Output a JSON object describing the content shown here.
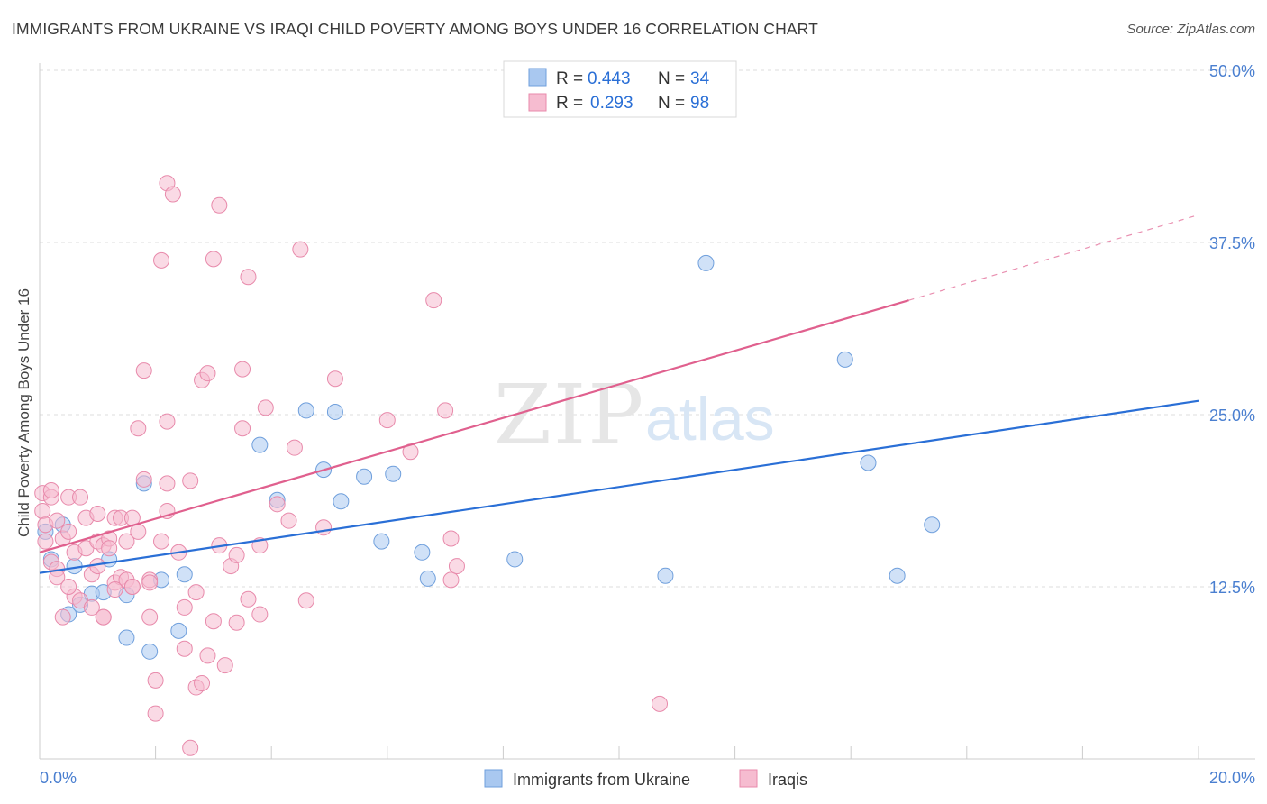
{
  "title": "IMMIGRANTS FROM UKRAINE VS IRAQI CHILD POVERTY AMONG BOYS UNDER 16 CORRELATION CHART",
  "source": "Source: ZipAtlas.com",
  "watermark": {
    "zip": "ZIP",
    "atlas": "atlas"
  },
  "colors": {
    "ukraine_fill": "#a9c8f0",
    "ukraine_stroke": "#6f9fdc",
    "ukraine_line": "#2a6fd6",
    "iraqi_fill": "#f6bcd0",
    "iraqi_stroke": "#e88aab",
    "iraqi_line": "#e0608e",
    "tick_label": "#4a7fd0",
    "grid": "#dddddd"
  },
  "legend": {
    "rows": [
      {
        "r_label": "R =",
        "r_value": "0.443",
        "n_label": "N =",
        "n_value": "34"
      },
      {
        "r_label": "R =",
        "r_value": "0.293",
        "n_label": "N =",
        "n_value": "98"
      }
    ]
  },
  "bottom_legend": [
    "Immigrants from Ukraine",
    "Iraqis"
  ],
  "chart_data": {
    "type": "scatter",
    "title": "IMMIGRANTS FROM UKRAINE VS IRAQI CHILD POVERTY AMONG BOYS UNDER 16 CORRELATION CHART",
    "xlabel": "",
    "ylabel": "Child Poverty Among Boys Under 16",
    "xlim": [
      0,
      20
    ],
    "ylim": [
      0,
      50
    ],
    "x_tick_labels": [
      "0.0%",
      "20.0%"
    ],
    "y_ticks": [
      12.5,
      25,
      37.5,
      50
    ],
    "y_tick_labels": [
      "12.5%",
      "25.0%",
      "37.5%",
      "50.0%"
    ],
    "grid": true,
    "legend_position": "top-center",
    "series": [
      {
        "name": "Immigrants from Ukraine",
        "R": 0.443,
        "N": 34,
        "trend": {
          "x": [
            0,
            20
          ],
          "y": [
            13.5,
            26.0
          ]
        },
        "points": [
          [
            0.1,
            16.5
          ],
          [
            0.2,
            14.5
          ],
          [
            0.4,
            17.0
          ],
          [
            0.5,
            10.5
          ],
          [
            0.6,
            14.0
          ],
          [
            0.7,
            11.2
          ],
          [
            0.9,
            12.0
          ],
          [
            1.1,
            12.1
          ],
          [
            1.2,
            14.5
          ],
          [
            1.5,
            8.8
          ],
          [
            1.5,
            11.9
          ],
          [
            1.8,
            20.0
          ],
          [
            1.9,
            7.8
          ],
          [
            2.1,
            13.0
          ],
          [
            2.4,
            9.3
          ],
          [
            2.5,
            13.4
          ],
          [
            4.1,
            18.8
          ],
          [
            3.8,
            22.8
          ],
          [
            4.6,
            25.3
          ],
          [
            5.1,
            25.2
          ],
          [
            4.9,
            21.0
          ],
          [
            5.2,
            18.7
          ],
          [
            5.6,
            20.5
          ],
          [
            6.1,
            20.7
          ],
          [
            5.9,
            15.8
          ],
          [
            6.6,
            15.0
          ],
          [
            6.7,
            13.1
          ],
          [
            8.2,
            14.5
          ],
          [
            11.5,
            36.0
          ],
          [
            10.8,
            13.3
          ],
          [
            13.9,
            29.0
          ],
          [
            14.3,
            21.5
          ],
          [
            14.8,
            13.3
          ],
          [
            15.4,
            17.0
          ]
        ]
      },
      {
        "name": "Iraqis",
        "R": 0.293,
        "N": 98,
        "trend": {
          "x": [
            0,
            15
          ],
          "y": [
            15.0,
            33.3
          ]
        },
        "trend_dashed": {
          "x": [
            15,
            20
          ],
          "y": [
            33.3,
            39.5
          ]
        },
        "points": [
          [
            0.05,
            19.3
          ],
          [
            0.05,
            18.0
          ],
          [
            0.1,
            17.0
          ],
          [
            0.1,
            15.8
          ],
          [
            0.2,
            19.0
          ],
          [
            0.2,
            19.5
          ],
          [
            0.2,
            14.3
          ],
          [
            0.3,
            17.3
          ],
          [
            0.3,
            13.8
          ],
          [
            0.3,
            13.2
          ],
          [
            0.4,
            16.0
          ],
          [
            0.4,
            10.3
          ],
          [
            0.5,
            16.5
          ],
          [
            0.5,
            19.0
          ],
          [
            0.6,
            11.8
          ],
          [
            0.6,
            15.0
          ],
          [
            0.7,
            11.5
          ],
          [
            0.7,
            19.0
          ],
          [
            0.8,
            15.3
          ],
          [
            0.8,
            17.5
          ],
          [
            0.9,
            13.4
          ],
          [
            0.9,
            11.0
          ],
          [
            1.0,
            17.8
          ],
          [
            1.0,
            15.8
          ],
          [
            1.0,
            14.0
          ],
          [
            1.1,
            10.3
          ],
          [
            1.1,
            10.3
          ],
          [
            1.1,
            15.5
          ],
          [
            1.2,
            16.0
          ],
          [
            1.2,
            15.3
          ],
          [
            1.3,
            17.5
          ],
          [
            1.3,
            12.8
          ],
          [
            1.4,
            13.2
          ],
          [
            1.4,
            17.5
          ],
          [
            1.5,
            15.8
          ],
          [
            1.5,
            13.0
          ],
          [
            1.6,
            17.5
          ],
          [
            1.6,
            12.5
          ],
          [
            1.6,
            12.5
          ],
          [
            1.7,
            24.0
          ],
          [
            1.7,
            16.5
          ],
          [
            1.8,
            28.2
          ],
          [
            1.8,
            20.3
          ],
          [
            1.9,
            13.0
          ],
          [
            1.9,
            12.8
          ],
          [
            1.9,
            10.3
          ],
          [
            2.0,
            5.7
          ],
          [
            2.0,
            3.3
          ],
          [
            2.1,
            36.2
          ],
          [
            2.1,
            15.8
          ],
          [
            2.2,
            20.0
          ],
          [
            2.2,
            18.0
          ],
          [
            2.2,
            24.5
          ],
          [
            2.2,
            41.8
          ],
          [
            2.3,
            41.0
          ],
          [
            2.4,
            15.0
          ],
          [
            2.5,
            11.0
          ],
          [
            2.5,
            8.0
          ],
          [
            2.6,
            20.2
          ],
          [
            2.6,
            0.8
          ],
          [
            2.7,
            12.1
          ],
          [
            2.7,
            5.2
          ],
          [
            2.8,
            27.5
          ],
          [
            2.8,
            5.5
          ],
          [
            2.9,
            28.0
          ],
          [
            2.9,
            7.5
          ],
          [
            3.0,
            10.0
          ],
          [
            3.0,
            36.3
          ],
          [
            3.1,
            15.5
          ],
          [
            3.1,
            40.2
          ],
          [
            3.2,
            6.8
          ],
          [
            3.3,
            14.0
          ],
          [
            3.4,
            14.8
          ],
          [
            3.4,
            9.9
          ],
          [
            3.5,
            28.3
          ],
          [
            3.5,
            24.0
          ],
          [
            3.6,
            11.6
          ],
          [
            3.6,
            35.0
          ],
          [
            3.8,
            15.5
          ],
          [
            3.8,
            10.5
          ],
          [
            3.9,
            25.5
          ],
          [
            4.1,
            18.5
          ],
          [
            4.3,
            17.3
          ],
          [
            4.4,
            22.6
          ],
          [
            4.5,
            37.0
          ],
          [
            4.6,
            11.5
          ],
          [
            4.9,
            16.8
          ],
          [
            5.1,
            27.6
          ],
          [
            6.0,
            24.6
          ],
          [
            6.4,
            22.3
          ],
          [
            6.8,
            33.3
          ],
          [
            7.0,
            25.3
          ],
          [
            7.1,
            16.0
          ],
          [
            7.1,
            13.0
          ],
          [
            7.2,
            14.0
          ],
          [
            10.7,
            4.0
          ],
          [
            1.3,
            12.3
          ],
          [
            0.5,
            12.5
          ]
        ]
      }
    ]
  }
}
